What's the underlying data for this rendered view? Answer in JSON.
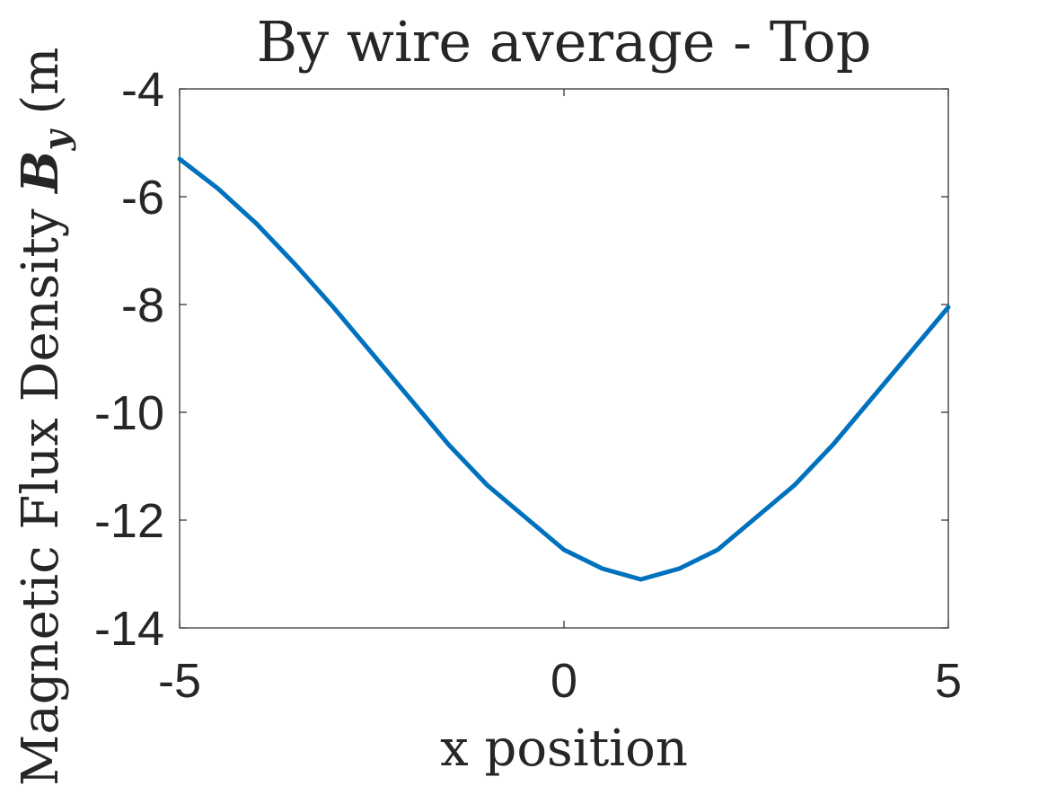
{
  "chart_data": {
    "type": "line",
    "title": "By wire average - Top",
    "xlabel": "x position",
    "ylabel": {
      "prefix": "Magnetic Flux Density ",
      "symbol": "B",
      "subscript": "y",
      "unit": " (m"
    },
    "xlim": [
      -5,
      5
    ],
    "ylim": [
      -14,
      -4
    ],
    "xticks": [
      -5,
      0,
      5
    ],
    "xtick_labels": [
      "-5",
      "0",
      "5"
    ],
    "yticks": [
      -4,
      -6,
      -8,
      -10,
      -12,
      -14
    ],
    "ytick_labels": [
      "-4",
      "-6",
      "-8",
      "-10",
      "-12",
      "-14"
    ],
    "grid": false,
    "series": [
      {
        "color": "#0072BD",
        "x": [
          -5,
          -4.5,
          -4,
          -3.5,
          -3,
          -2.5,
          -2,
          -1.5,
          -1,
          -0.5,
          0,
          0.5,
          1,
          1.5,
          2,
          2.5,
          3,
          3.5,
          4,
          4.5,
          5
        ],
        "y": [
          -5.3,
          -5.85,
          -6.5,
          -7.25,
          -8.05,
          -8.9,
          -9.75,
          -10.6,
          -11.35,
          -11.95,
          -12.55,
          -12.9,
          -13.1,
          -12.9,
          -12.55,
          -11.95,
          -11.35,
          -10.6,
          -9.75,
          -8.9,
          -8.05
        ]
      }
    ]
  }
}
